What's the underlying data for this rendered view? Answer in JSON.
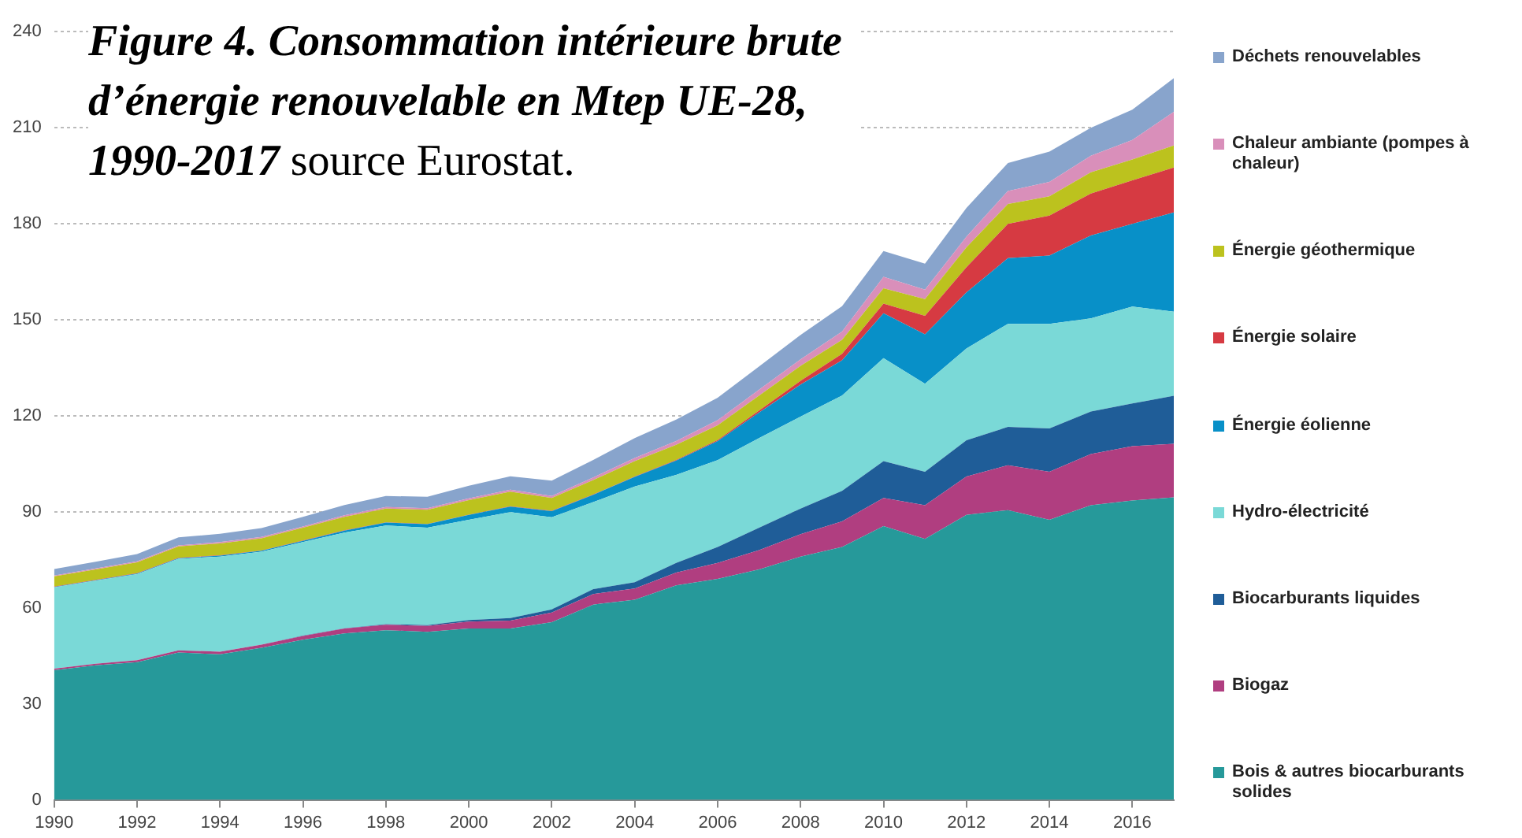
{
  "chart_data": {
    "type": "area",
    "stacked": true,
    "title": "Figure 4. Consommation intérieure brute d’énergie renouvelable en Mtep UE-28, 1990-2017",
    "annotations": [
      "source Eurostat."
    ],
    "x": [
      1990,
      1991,
      1992,
      1993,
      1994,
      1995,
      1996,
      1997,
      1998,
      1999,
      2000,
      2001,
      2002,
      2003,
      2004,
      2005,
      2006,
      2007,
      2008,
      2009,
      2010,
      2011,
      2012,
      2013,
      2014,
      2015,
      2016,
      2017
    ],
    "xlim": [
      1990,
      2017
    ],
    "xticks": [
      1990,
      1992,
      1994,
      1996,
      1998,
      2000,
      2002,
      2004,
      2006,
      2008,
      2010,
      2012,
      2014,
      2016
    ],
    "ylim": [
      0,
      240
    ],
    "yticks": [
      0,
      30,
      60,
      90,
      120,
      150,
      180,
      210,
      240
    ],
    "grid": "y",
    "legend": "right",
    "series": [
      {
        "name": "Bois & autres biocarburants solides",
        "color": "#26999a",
        "values": [
          40.5,
          42,
          43,
          46,
          45.5,
          47.5,
          50,
          52,
          53,
          52.5,
          53.5,
          53.5,
          55.5,
          61,
          62.5,
          67,
          69,
          72,
          76,
          79,
          85.5,
          81.5,
          89,
          90.5,
          87.5,
          92,
          93.5,
          94.5
        ]
      },
      {
        "name": "Biogaz",
        "color": "#b03e80",
        "values": [
          0.5,
          0.5,
          0.6,
          0.7,
          0.8,
          1,
          1.2,
          1.5,
          1.7,
          1.8,
          2.2,
          2.5,
          3,
          3.3,
          3.5,
          4,
          5,
          6,
          7,
          8,
          8.8,
          10.5,
          12,
          14,
          15,
          16,
          17,
          16.7
        ]
      },
      {
        "name": "Biocarburants liquides",
        "color": "#1f5d98",
        "values": [
          0,
          0,
          0,
          0,
          0,
          0,
          0.1,
          0.1,
          0.2,
          0.3,
          0.5,
          0.8,
          1,
          1.5,
          2,
          3,
          5,
          7,
          8,
          9.5,
          11.5,
          10.5,
          11.3,
          12,
          13.5,
          13.3,
          13.3,
          15
        ]
      },
      {
        "name": "Hydro-électricité",
        "color": "#7ad9d7",
        "values": [
          25.4,
          26,
          26.9,
          28.6,
          29.7,
          29,
          29.2,
          29.9,
          30.8,
          30.4,
          31.3,
          33.1,
          28.8,
          27.2,
          29.9,
          27.5,
          27.1,
          28,
          28.7,
          29.8,
          32.2,
          27.5,
          28.7,
          32.2,
          32.7,
          29.1,
          30.3,
          26.3
        ]
      },
      {
        "name": "Énergie éolienne",
        "color": "#0890c8",
        "values": [
          0.1,
          0.1,
          0.2,
          0.2,
          0.3,
          0.3,
          0.4,
          0.6,
          0.9,
          1.1,
          1.5,
          1.7,
          1.9,
          2.3,
          3,
          4.5,
          6,
          8,
          10,
          11,
          14,
          15.4,
          17.5,
          20.5,
          21.3,
          25.9,
          25.8,
          31
        ]
      },
      {
        "name": "Énergie solaire",
        "color": "#d63a42",
        "values": [
          0.1,
          0.1,
          0.1,
          0.1,
          0.1,
          0.1,
          0.1,
          0.1,
          0.1,
          0.1,
          0.1,
          0.1,
          0.1,
          0.1,
          0.1,
          0.2,
          0.3,
          0.6,
          1.2,
          2,
          3,
          5.8,
          7.9,
          10.7,
          12.5,
          13.1,
          13.6,
          14
        ]
      },
      {
        "name": "Énergie géothermique",
        "color": "#bcc21e",
        "values": [
          3.2,
          3.3,
          3.4,
          3.6,
          3.7,
          3.8,
          4,
          4.2,
          4.3,
          4.4,
          4.5,
          4.6,
          4,
          4.5,
          4.8,
          4.7,
          4.6,
          4.7,
          4.7,
          4.4,
          4.8,
          5.2,
          6.2,
          6.2,
          6,
          6.6,
          6.5,
          6.9
        ]
      },
      {
        "name": "Chaleur ambiante (pompes à chaleur)",
        "color": "#d98fba",
        "values": [
          0.3,
          0.3,
          0.3,
          0.3,
          0.4,
          0.4,
          0.4,
          0.5,
          0.5,
          0.5,
          0.6,
          0.6,
          0.6,
          0.8,
          1,
          1.2,
          1.6,
          1.8,
          2,
          2.6,
          3.6,
          3,
          3.3,
          4.1,
          4.5,
          5.2,
          6.1,
          10.5
        ]
      },
      {
        "name": "Déchets renouvelables",
        "color": "#88a4cc",
        "values": [
          2,
          2.1,
          2.3,
          2.5,
          2.6,
          2.8,
          3,
          3.2,
          3.4,
          3.6,
          3.9,
          4.2,
          4.8,
          5.5,
          6.2,
          6.7,
          7,
          7.3,
          7.6,
          7.9,
          8,
          8.1,
          9,
          8.7,
          9.5,
          8.7,
          9.5,
          10.5
        ]
      }
    ]
  }
}
